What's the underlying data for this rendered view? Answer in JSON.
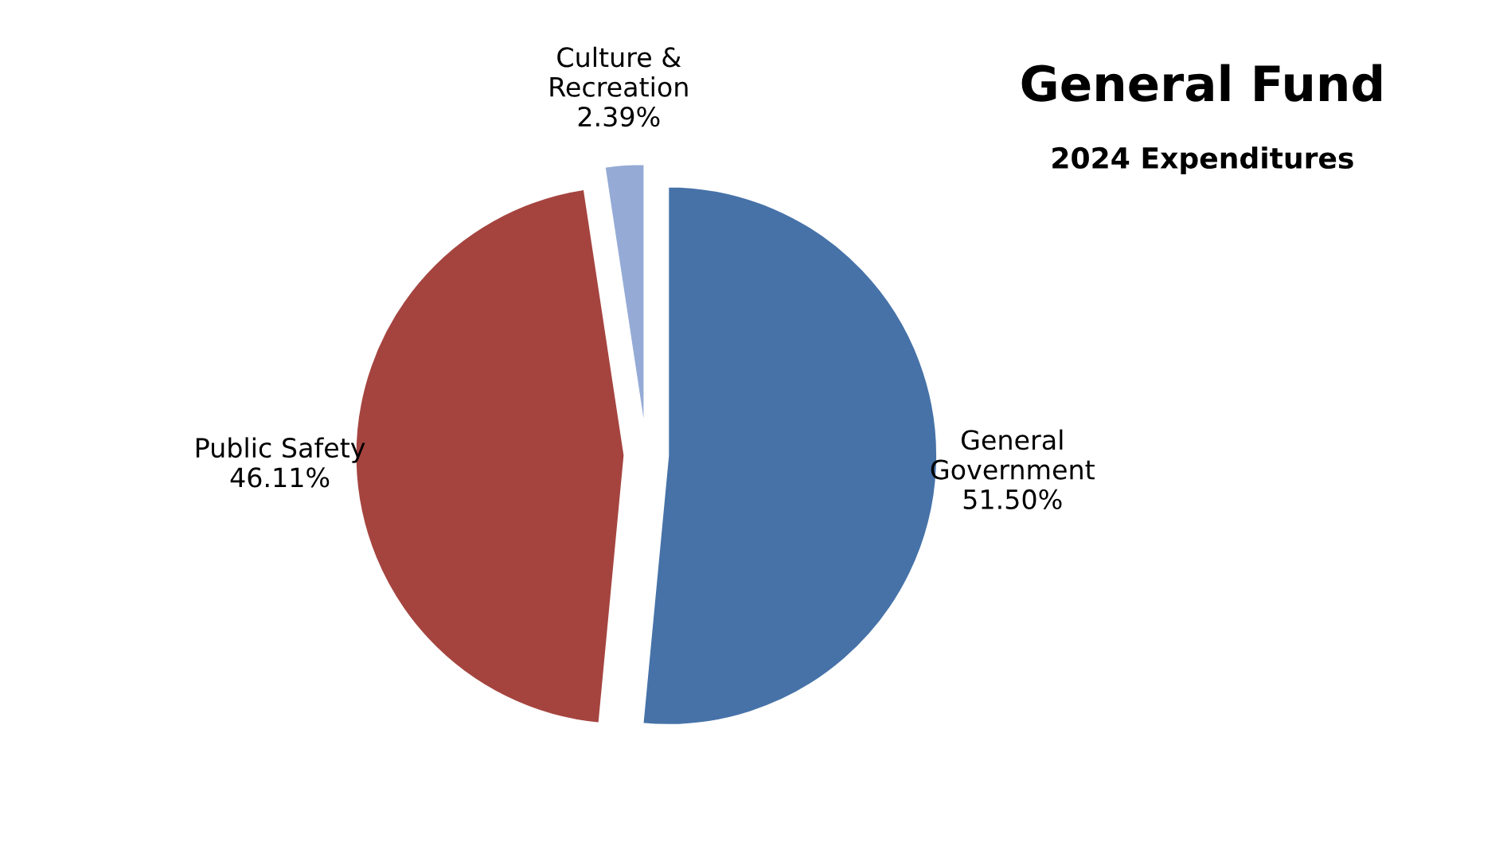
{
  "chart_data": {
    "type": "pie",
    "title": "General Fund",
    "subtitle": "2024 Expenditures",
    "categories": [
      "General Government",
      "Public Safety",
      "Culture & Recreation"
    ],
    "values": [
      51.5,
      46.11,
      2.39
    ],
    "value_labels": [
      "51.50%",
      "46.11%",
      "2.39%"
    ],
    "colors": [
      "#4672a8",
      "#a5443f",
      "#95abd6"
    ],
    "legend": false
  }
}
